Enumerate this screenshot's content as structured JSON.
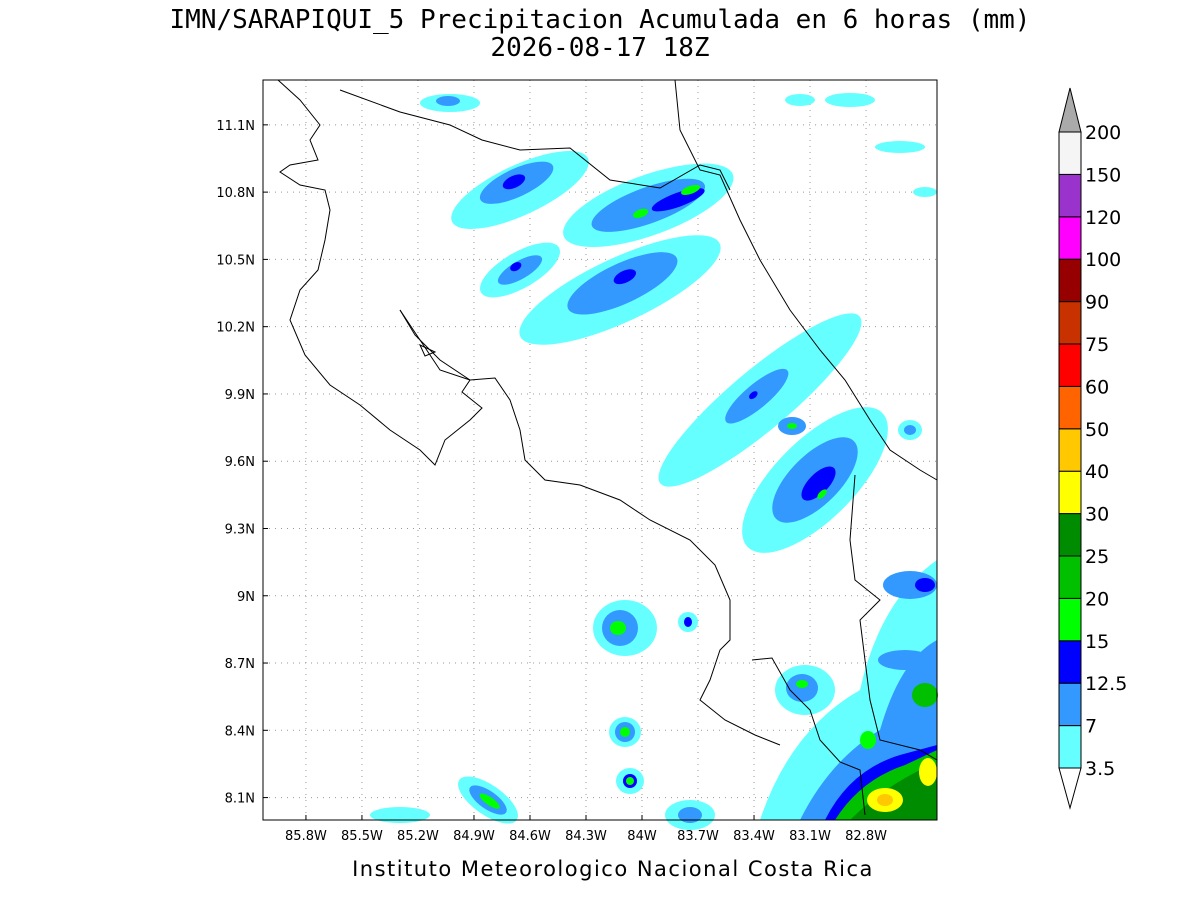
{
  "title": "IMN/SARAPIQUI_5 Precipitacion Acumulada en 6 horas (mm)",
  "subtitle": "2026-08-17 18Z",
  "footer": "Instituto Meteorologico Nacional Costa Rica",
  "map": {
    "xlim": [
      -86.03,
      -82.42
    ],
    "ylim": [
      8.0,
      11.3
    ],
    "xticks": [
      {
        "value": -85.8,
        "label": "85.8W"
      },
      {
        "value": -85.5,
        "label": "85.5W"
      },
      {
        "value": -85.2,
        "label": "85.2W"
      },
      {
        "value": -84.9,
        "label": "84.9W"
      },
      {
        "value": -84.6,
        "label": "84.6W"
      },
      {
        "value": -84.3,
        "label": "84.3W"
      },
      {
        "value": -84.0,
        "label": "84W"
      },
      {
        "value": -83.7,
        "label": "83.7W"
      },
      {
        "value": -83.4,
        "label": "83.4W"
      },
      {
        "value": -83.1,
        "label": "83.1W"
      },
      {
        "value": -82.8,
        "label": "82.8W"
      }
    ],
    "yticks": [
      {
        "value": 8.1,
        "label": "8.1N"
      },
      {
        "value": 8.4,
        "label": "8.4N"
      },
      {
        "value": 8.7,
        "label": "8.7N"
      },
      {
        "value": 9.0,
        "label": "9N"
      },
      {
        "value": 9.3,
        "label": "9.3N"
      },
      {
        "value": 9.6,
        "label": "9.6N"
      },
      {
        "value": 9.9,
        "label": "9.9N"
      },
      {
        "value": 10.2,
        "label": "10.2N"
      },
      {
        "value": 10.5,
        "label": "10.5N"
      },
      {
        "value": 10.8,
        "label": "10.8N"
      },
      {
        "value": 11.1,
        "label": "11.1N"
      }
    ],
    "grid": true
  },
  "colorbar": {
    "levels": [
      3.5,
      7,
      12.5,
      15,
      20,
      25,
      30,
      40,
      50,
      60,
      75,
      90,
      100,
      120,
      150,
      200
    ],
    "colors": [
      "#ffffff",
      "#66ffff",
      "#3399ff",
      "#0000ff",
      "#00ff00",
      "#00c000",
      "#008c00",
      "#ffff00",
      "#ffc800",
      "#ff6400",
      "#ff0000",
      "#c83200",
      "#960000",
      "#ff00ff",
      "#9933cc",
      "#f5f5f5",
      "#aaaaaa"
    ]
  }
}
